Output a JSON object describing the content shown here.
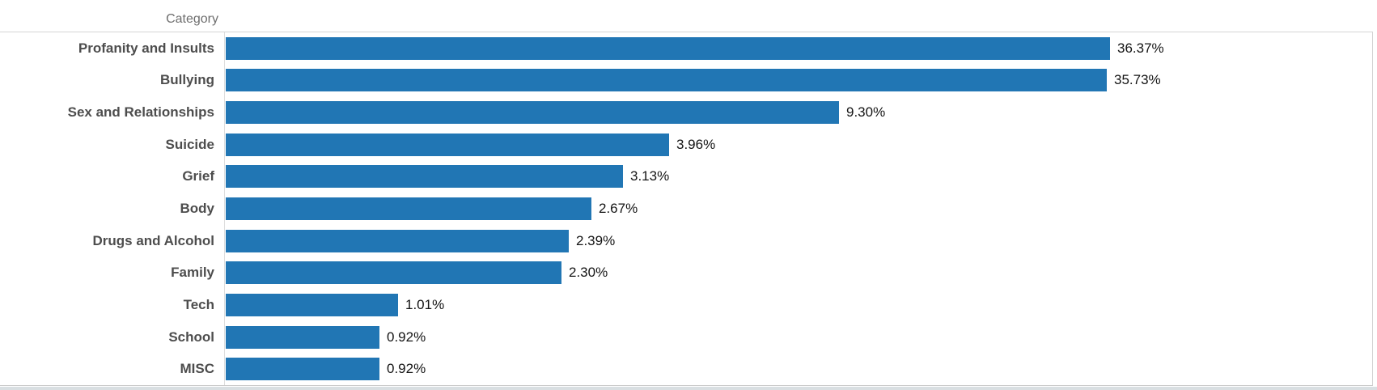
{
  "header": {
    "column_label": "Category"
  },
  "chart_data": {
    "type": "bar",
    "orientation": "horizontal",
    "title": "",
    "xlabel": "",
    "ylabel": "Category",
    "categories": [
      "Profanity and Insults",
      "Bullying",
      "Sex and Relationships",
      "Suicide",
      "Grief",
      "Body",
      "Drugs and Alcohol",
      "Family",
      "Tech",
      "School",
      "MISC"
    ],
    "values": [
      36.37,
      35.73,
      9.3,
      3.96,
      3.13,
      2.67,
      2.39,
      2.3,
      1.01,
      0.92,
      0.92
    ],
    "value_labels": [
      "36.37%",
      "35.73%",
      "9.30%",
      "3.96%",
      "3.13%",
      "2.67%",
      "2.39%",
      "2.30%",
      "1.01%",
      "0.92%",
      "0.92%"
    ],
    "unit": "%",
    "bar_color": "#2176b4",
    "category_label_color": "#4d4d4d",
    "value_label_color": "#141414",
    "header_label_color": "#6e6e6e",
    "x_scale": "log",
    "x_min_estimate": 0.42,
    "x_max": 36.37,
    "grid": false,
    "legend": "none",
    "value_labels_position": "end-of-bar"
  }
}
